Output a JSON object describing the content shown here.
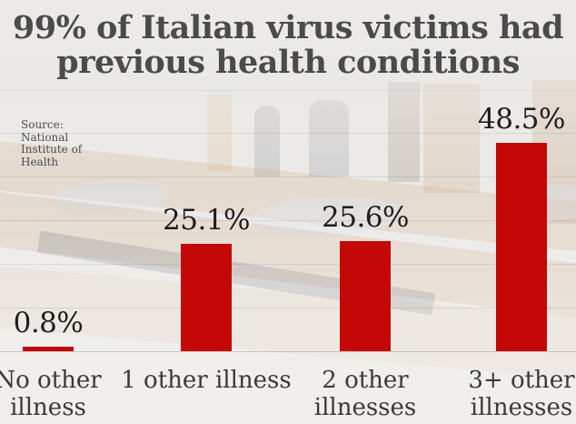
{
  "title": "99% of Italian virus victims had\nprevious health conditions",
  "source": "Source:\nNational\nInstitute of\nHealth",
  "colors": {
    "bar_red": "#c40808",
    "title_gray": "#4b4b4b",
    "category_gray": "#3a3a3a",
    "value_black": "#1d1d1d",
    "background": "#eae8e5"
  },
  "chart_data": {
    "type": "bar",
    "title": "99% of Italian virus victims had previous health conditions",
    "source": "Source: National Institute of Health",
    "categories": [
      "No other illness",
      "1 other illness",
      "2 other illnesses",
      "3+ other illnesses"
    ],
    "category_lines": [
      [
        "No other",
        "illness"
      ],
      [
        "1 other illness"
      ],
      [
        "2 other",
        "illnesses"
      ],
      [
        "3+ other",
        "illnesses"
      ]
    ],
    "values": [
      0.8,
      25.1,
      25.6,
      48.5
    ],
    "value_labels": [
      "0.8%",
      "25.1%",
      "25.6%",
      "48.5%"
    ],
    "unit": "%",
    "ylim": [
      0,
      50
    ],
    "grid": true,
    "legend": false,
    "bar_color": "#c40808",
    "background_note": "faded photo of coffins lined up in a hall"
  }
}
